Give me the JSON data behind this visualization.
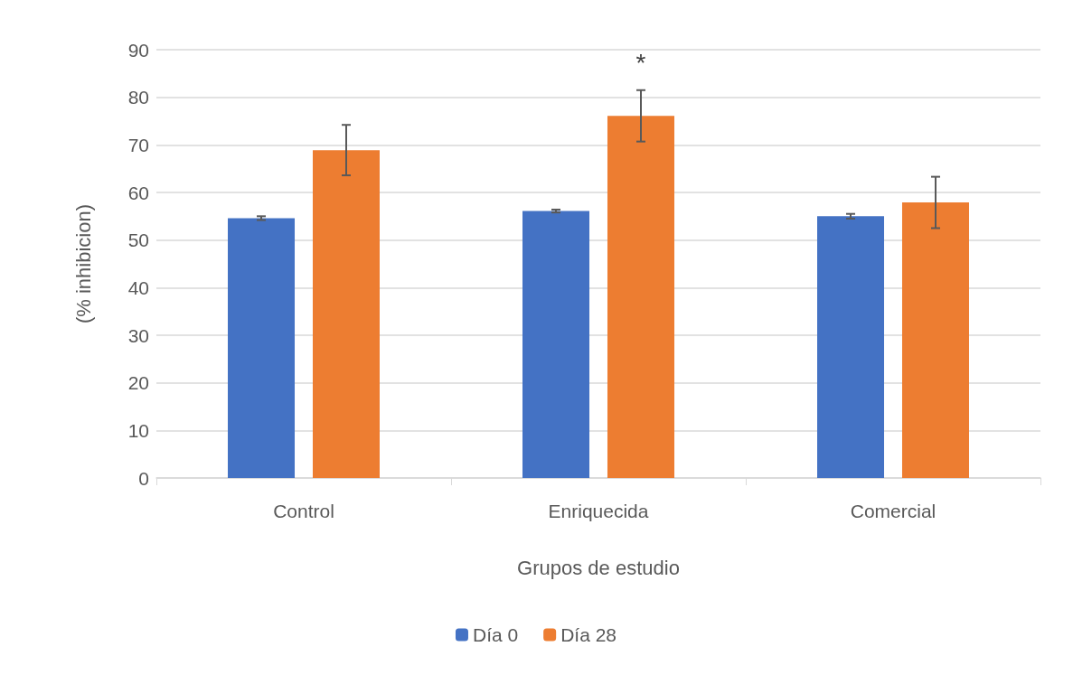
{
  "chart_data": {
    "type": "bar",
    "xlabel": "Grupos de estudio",
    "ylabel": "(% inhibicion)",
    "categories": [
      "Control",
      "Enriquecida",
      "Comercial"
    ],
    "series": [
      {
        "name": "Día 0",
        "color": "#4472c4",
        "values": [
          54.6,
          56.1,
          55.0
        ],
        "errors": [
          0.4,
          0.3,
          0.5
        ]
      },
      {
        "name": "Día 28",
        "color": "#ed7d31",
        "values": [
          68.9,
          76.1,
          57.9
        ],
        "errors": [
          5.3,
          5.4,
          5.4
        ]
      }
    ],
    "ylim": [
      0,
      90
    ],
    "yticks": [
      0,
      10,
      20,
      30,
      40,
      50,
      60,
      70,
      80,
      90
    ],
    "grid": "y",
    "legend": "bottom",
    "annotations": [
      "*"
    ]
  }
}
